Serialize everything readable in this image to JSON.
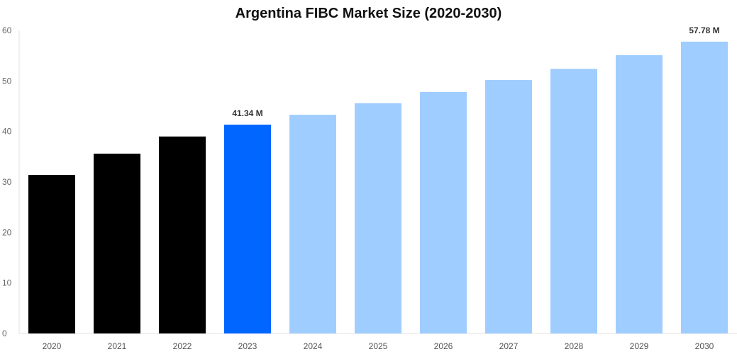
{
  "chart_data": {
    "type": "bar",
    "title": "Argentina FIBC Market Size (2020-2030)",
    "xlabel": "",
    "ylabel": "",
    "categories": [
      "2020",
      "2021",
      "2022",
      "2023",
      "2024",
      "2025",
      "2026",
      "2027",
      "2028",
      "2029",
      "2030"
    ],
    "values": [
      31.4,
      35.6,
      39.0,
      41.34,
      43.3,
      45.6,
      47.8,
      50.2,
      52.4,
      55.1,
      57.78
    ],
    "bar_colors": [
      "#000000",
      "#000000",
      "#000000",
      "#0066ff",
      "#a0cdff",
      "#a0cdff",
      "#a0cdff",
      "#a0cdff",
      "#a0cdff",
      "#a0cdff",
      "#a0cdff"
    ],
    "data_labels": {
      "3": "41.34 M",
      "10": "57.78 M"
    },
    "ylim": [
      0,
      60
    ],
    "yticks": [
      0,
      10,
      20,
      30,
      40,
      50,
      60
    ],
    "grid": false,
    "legend": "none"
  }
}
